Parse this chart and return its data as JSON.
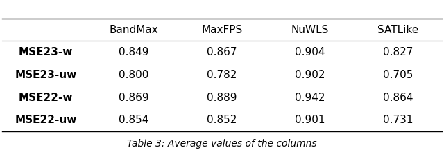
{
  "columns": [
    "",
    "BandMax",
    "MaxFPS",
    "NuWLS",
    "SATLike"
  ],
  "rows": [
    [
      "MSE23-w",
      "0.849",
      "0.867",
      "0.904",
      "0.827"
    ],
    [
      "MSE23-uw",
      "0.800",
      "0.782",
      "0.902",
      "0.705"
    ],
    [
      "MSE22-w",
      "0.869",
      "0.889",
      "0.942",
      "0.864"
    ],
    [
      "MSE22-uw",
      "0.854",
      "0.852",
      "0.901",
      "0.731"
    ]
  ],
  "caption": "Table 3: Average values of the columns",
  "figsize": [
    6.4,
    2.17
  ],
  "dpi": 100,
  "background_color": "#ffffff",
  "font_size": 11,
  "caption_font_size": 10
}
